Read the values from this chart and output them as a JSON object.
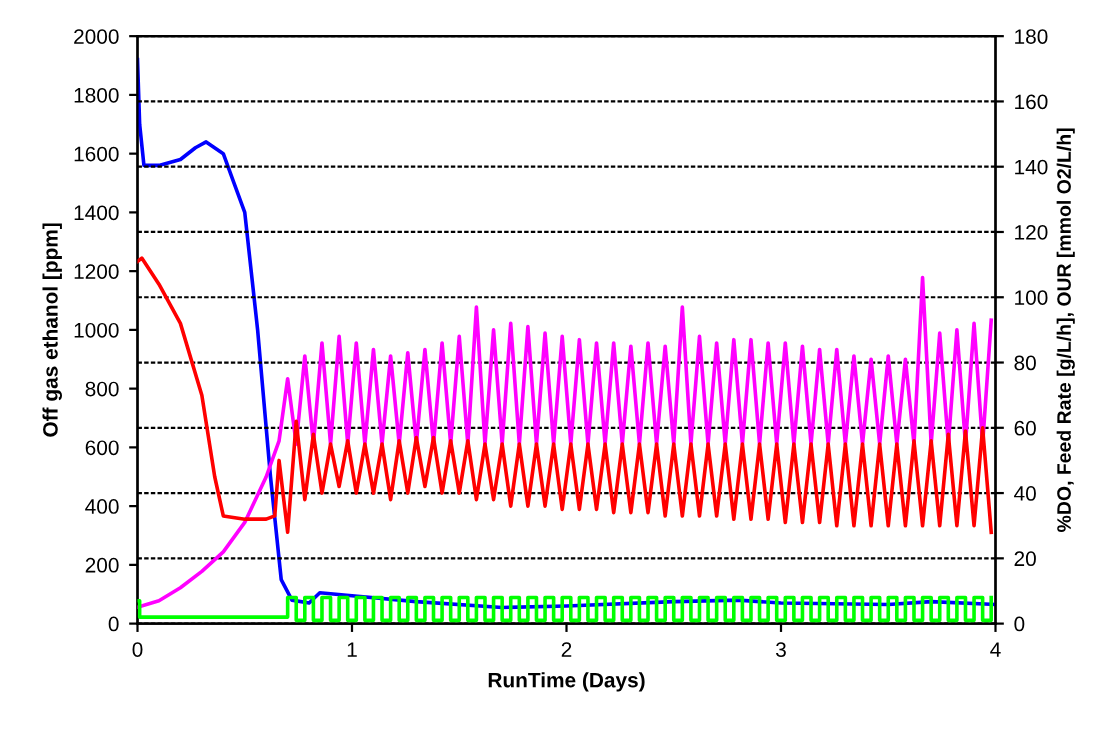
{
  "chart_data": {
    "type": "line",
    "xlabel": "RunTime (Days)",
    "ylabel": "Off gas ethanol [ppm]",
    "y2label": "%DO, Feed Rate [g/L/h], OUR [mmol O2/L/h]",
    "xlim": [
      0,
      4
    ],
    "xticks": [
      0,
      1,
      2,
      3,
      4
    ],
    "ylim": [
      0,
      2000
    ],
    "yticks": [
      0,
      200,
      400,
      600,
      800,
      1000,
      1200,
      1400,
      1600,
      1800,
      2000
    ],
    "y2lim": [
      0,
      180
    ],
    "y2ticks": [
      0,
      20,
      40,
      60,
      80,
      100,
      120,
      140,
      160,
      180
    ],
    "grid": "y2",
    "line_style": "solid",
    "marker": "none",
    "series": [
      {
        "color": "#ff00ff",
        "axis": "y2",
        "x": [
          0,
          0.1,
          0.2,
          0.3,
          0.4,
          0.5,
          0.6,
          0.66,
          0.7,
          0.74,
          0.78,
          0.82,
          0.86,
          0.9,
          0.94,
          0.98,
          1.02,
          1.06,
          1.1,
          1.14,
          1.18,
          1.22,
          1.26,
          1.3,
          1.34,
          1.38,
          1.42,
          1.46,
          1.5,
          1.54,
          1.58,
          1.62,
          1.66,
          1.7,
          1.74,
          1.78,
          1.82,
          1.86,
          1.9,
          1.94,
          1.98,
          2.02,
          2.06,
          2.1,
          2.14,
          2.18,
          2.22,
          2.26,
          2.3,
          2.34,
          2.38,
          2.42,
          2.46,
          2.5,
          2.54,
          2.58,
          2.62,
          2.66,
          2.7,
          2.74,
          2.78,
          2.82,
          2.86,
          2.9,
          2.94,
          2.98,
          3.02,
          3.06,
          3.1,
          3.14,
          3.18,
          3.22,
          3.26,
          3.3,
          3.34,
          3.38,
          3.42,
          3.46,
          3.5,
          3.54,
          3.58,
          3.62,
          3.66,
          3.7,
          3.74,
          3.78,
          3.82,
          3.86,
          3.9,
          3.94,
          3.98
        ],
        "values": [
          5,
          7,
          11,
          16,
          22,
          31,
          45,
          56,
          75,
          55,
          82,
          55,
          86,
          55,
          88,
          55,
          86,
          55,
          84,
          55,
          82,
          55,
          83,
          55,
          84,
          55,
          86,
          55,
          88,
          55,
          97,
          55,
          90,
          55,
          92,
          55,
          91,
          55,
          89,
          55,
          88,
          55,
          87,
          55,
          86,
          55,
          86,
          55,
          85,
          55,
          86,
          55,
          85,
          55,
          97,
          55,
          88,
          55,
          86,
          55,
          87,
          55,
          87,
          55,
          86,
          55,
          86,
          55,
          85,
          55,
          84,
          55,
          84,
          55,
          82,
          55,
          81,
          55,
          82,
          55,
          81,
          55,
          106,
          55,
          89,
          55,
          90,
          55,
          92,
          55,
          93
        ]
      },
      {
        "color": "#ff0000",
        "axis": "y2",
        "x": [
          0,
          0.02,
          0.1,
          0.2,
          0.3,
          0.36,
          0.4,
          0.5,
          0.6,
          0.64,
          0.66,
          0.7,
          0.74,
          0.78,
          0.82,
          0.86,
          0.9,
          0.94,
          0.98,
          1.02,
          1.06,
          1.1,
          1.14,
          1.18,
          1.22,
          1.26,
          1.3,
          1.34,
          1.38,
          1.42,
          1.46,
          1.5,
          1.54,
          1.58,
          1.62,
          1.66,
          1.7,
          1.74,
          1.78,
          1.82,
          1.86,
          1.9,
          1.94,
          1.98,
          2.02,
          2.06,
          2.1,
          2.14,
          2.18,
          2.22,
          2.26,
          2.3,
          2.34,
          2.38,
          2.42,
          2.46,
          2.5,
          2.54,
          2.58,
          2.62,
          2.66,
          2.7,
          2.74,
          2.78,
          2.82,
          2.86,
          2.9,
          2.94,
          2.98,
          3.02,
          3.06,
          3.1,
          3.14,
          3.18,
          3.22,
          3.26,
          3.3,
          3.34,
          3.38,
          3.42,
          3.46,
          3.5,
          3.54,
          3.58,
          3.62,
          3.66,
          3.7,
          3.74,
          3.78,
          3.82,
          3.86,
          3.9,
          3.94,
          3.98
        ],
        "values": [
          111,
          112,
          104,
          92,
          70,
          45,
          33,
          32,
          32,
          33,
          50,
          28,
          62,
          38,
          58,
          40,
          55,
          42,
          56,
          40,
          55,
          40,
          55,
          38,
          56,
          40,
          57,
          42,
          57,
          40,
          56,
          40,
          56,
          38,
          55,
          38,
          55,
          36,
          55,
          36,
          55,
          36,
          55,
          35,
          55,
          35,
          55,
          35,
          55,
          34,
          55,
          34,
          55,
          34,
          55,
          33,
          55,
          33,
          55,
          33,
          55,
          33,
          55,
          32,
          55,
          32,
          55,
          32,
          55,
          31,
          55,
          31,
          55,
          31,
          55,
          30,
          55,
          30,
          55,
          30,
          55,
          30,
          55,
          30,
          56,
          30,
          56,
          30,
          58,
          30,
          59,
          30,
          60,
          28
        ]
      },
      {
        "color": "#0000ff",
        "x": [
          0,
          0.01,
          0.03,
          0.1,
          0.2,
          0.27,
          0.32,
          0.4,
          0.45,
          0.5,
          0.56,
          0.62,
          0.67,
          0.72,
          0.8,
          0.85,
          1.0,
          1.3,
          1.7,
          2.0,
          2.5,
          2.8,
          3.0,
          3.5,
          3.7,
          4.0
        ],
        "values": [
          1920,
          1700,
          1560,
          1560,
          1580,
          1620,
          1640,
          1600,
          1500,
          1400,
          1000,
          500,
          150,
          80,
          70,
          105,
          95,
          75,
          55,
          60,
          75,
          80,
          70,
          65,
          75,
          65
        ]
      },
      {
        "color": "#00ff00",
        "axis": "y2",
        "type": "step",
        "x": [
          0,
          0.01,
          0.66,
          0.7,
          0.74,
          0.78,
          0.82,
          0.86,
          0.9,
          0.94,
          0.98,
          1.02,
          1.06,
          1.1,
          1.14,
          1.18,
          1.22,
          1.26,
          1.3,
          1.34,
          1.38,
          1.42,
          1.46,
          1.5,
          1.54,
          1.58,
          1.62,
          1.66,
          1.7,
          1.74,
          1.78,
          1.82,
          1.86,
          1.9,
          1.94,
          1.98,
          2.02,
          2.06,
          2.1,
          2.14,
          2.18,
          2.22,
          2.26,
          2.3,
          2.34,
          2.38,
          2.42,
          2.46,
          2.5,
          2.54,
          2.58,
          2.62,
          2.66,
          2.7,
          2.74,
          2.78,
          2.82,
          2.86,
          2.9,
          2.94,
          2.98,
          3.02,
          3.06,
          3.1,
          3.14,
          3.18,
          3.22,
          3.26,
          3.3,
          3.34,
          3.38,
          3.42,
          3.46,
          3.5,
          3.54,
          3.58,
          3.62,
          3.66,
          3.7,
          3.74,
          3.78,
          3.82,
          3.86,
          3.9,
          3.94,
          3.98
        ],
        "values": [
          7,
          2,
          2,
          8,
          1,
          8,
          1,
          8,
          1,
          8,
          1,
          8,
          1,
          8,
          1,
          8,
          1,
          8,
          1,
          8,
          1,
          8,
          1,
          8,
          1,
          8,
          1,
          8,
          1,
          8,
          1,
          8,
          1,
          8,
          1,
          8,
          1,
          8,
          1,
          8,
          1,
          8,
          1,
          8,
          1,
          8,
          1,
          8,
          1,
          8,
          1,
          8,
          1,
          8,
          1,
          8,
          1,
          8,
          1,
          8,
          1,
          8,
          1,
          8,
          1,
          8,
          1,
          8,
          1,
          8,
          1,
          8,
          1,
          8,
          1,
          8,
          1,
          8,
          1,
          8,
          1,
          8,
          1,
          8,
          1,
          8
        ]
      }
    ]
  }
}
